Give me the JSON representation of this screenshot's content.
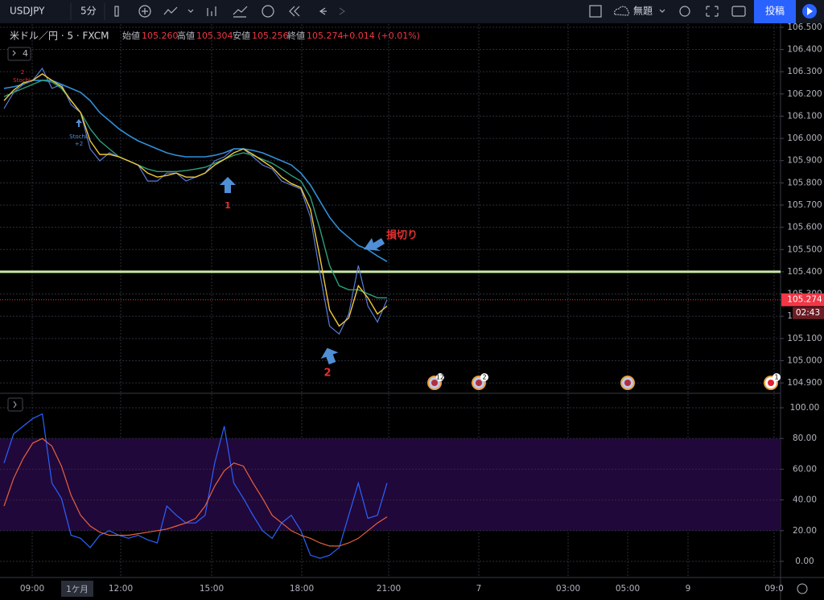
{
  "toolbar": {
    "symbol": "USDJPY",
    "interval": "5分",
    "layout_name": "無題",
    "publish": "投稿"
  },
  "legend": {
    "title": "米ドル／円 · 5 · FXCM",
    "open_label": "始値",
    "open": "105.260",
    "high_label": "高値",
    "high": "105.304",
    "low_label": "安値",
    "low": "105.256",
    "close_label": "終値",
    "close": "105.274",
    "change": "+0.014 (+0.01%)",
    "indicator_count": "4"
  },
  "chart_data": [
    {
      "type": "line",
      "ylim": [
        104.857,
        106.514
      ],
      "yticks": [
        {
          "value": 106.5,
          "label": "106.500"
        },
        {
          "value": 106.4,
          "label": "106.400"
        },
        {
          "value": 106.3,
          "label": "106.300"
        },
        {
          "value": 106.2,
          "label": "106.200"
        },
        {
          "value": 106.1,
          "label": "106.100"
        },
        {
          "value": 106.0,
          "label": "106.000"
        },
        {
          "value": 105.9,
          "label": "105.900"
        },
        {
          "value": 105.8,
          "label": "105.800"
        },
        {
          "value": 105.7,
          "label": "105.700"
        },
        {
          "value": 105.6,
          "label": "105.600"
        },
        {
          "value": 105.5,
          "label": "105.500"
        },
        {
          "value": 105.4,
          "label": "105.400"
        },
        {
          "value": 105.3,
          "label": "105.300"
        },
        {
          "value": 105.2,
          "label": "105.200"
        },
        {
          "value": 105.1,
          "label": "105.100"
        },
        {
          "value": 105.0,
          "label": "105.000"
        },
        {
          "value": 104.9,
          "label": "104.900"
        }
      ],
      "grid": true,
      "series": [
        {
          "color": "#5b7bd6",
          "width": 1.2,
          "values": [
            106.134,
            106.207,
            106.243,
            106.261,
            106.315,
            106.225,
            106.243,
            106.152,
            106.116,
            105.953,
            105.899,
            105.935,
            105.917,
            105.899,
            105.88,
            105.808,
            105.808,
            105.844,
            105.844,
            105.808,
            105.826,
            105.844,
            105.899,
            105.917,
            105.953,
            105.953,
            105.917,
            105.88,
            105.862,
            105.808,
            105.79,
            105.772,
            105.645,
            105.391,
            105.156,
            105.12,
            105.21,
            105.428,
            105.246,
            105.174,
            105.274
          ]
        },
        {
          "color": "#2f8fd8",
          "width": 1.6,
          "values": [
            106.225,
            106.232,
            106.243,
            106.261,
            106.261,
            106.261,
            106.243,
            106.225,
            106.207,
            106.17,
            106.116,
            106.08,
            106.043,
            106.014,
            105.989,
            105.971,
            105.953,
            105.935,
            105.924,
            105.917,
            105.917,
            105.917,
            105.924,
            105.935,
            105.953,
            105.953,
            105.946,
            105.935,
            105.917,
            105.899,
            105.88,
            105.844,
            105.79,
            105.717,
            105.645,
            105.591,
            105.554,
            105.518,
            105.5,
            105.471,
            105.446
          ]
        },
        {
          "color": "#2e9e7c",
          "width": 1.4,
          "values": [
            106.188,
            106.207,
            106.225,
            106.243,
            106.261,
            106.254,
            106.225,
            106.17,
            106.116,
            106.043,
            105.989,
            105.953,
            105.917,
            105.899,
            105.88,
            105.862,
            105.851,
            105.851,
            105.851,
            105.855,
            105.862,
            105.87,
            105.888,
            105.906,
            105.924,
            105.935,
            105.924,
            105.906,
            105.888,
            105.862,
            105.833,
            105.808,
            105.736,
            105.591,
            105.428,
            105.337,
            105.319,
            105.319,
            105.301,
            105.283,
            105.283
          ]
        },
        {
          "color": "#f0c93a",
          "width": 1.4,
          "values": [
            106.17,
            106.217,
            106.25,
            106.261,
            106.29,
            106.261,
            106.232,
            106.17,
            106.116,
            105.989,
            105.928,
            105.928,
            105.917,
            105.899,
            105.88,
            105.844,
            105.826,
            105.833,
            105.844,
            105.826,
            105.826,
            105.844,
            105.88,
            105.906,
            105.935,
            105.953,
            105.928,
            105.899,
            105.87,
            105.826,
            105.797,
            105.779,
            105.681,
            105.464,
            105.228,
            105.156,
            105.192,
            105.337,
            105.283,
            105.21,
            105.246
          ]
        }
      ],
      "hlines": [
        {
          "value": 105.4,
          "color": "#c9e8a8"
        }
      ],
      "last_price": {
        "value": 105.274,
        "label": "105.274",
        "color": "#f23645"
      },
      "countdown": "02:43",
      "annotations": [
        {
          "text": "1"
        },
        {
          "text": "2"
        },
        {
          "text": "損切り"
        }
      ],
      "study_markers": [
        {
          "text": "StochL",
          "sub": "2"
        },
        {
          "text": "StochL",
          "sub": "+2"
        }
      ],
      "event_counts": [
        "12",
        "2",
        null,
        "1"
      ]
    },
    {
      "type": "line",
      "ylim": [
        -10.5,
        108.9
      ],
      "yticks": [
        {
          "value": 100,
          "label": "100.00"
        },
        {
          "value": 80,
          "label": "80.00"
        },
        {
          "value": 60,
          "label": "60.00"
        },
        {
          "value": 40,
          "label": "40.00"
        },
        {
          "value": 20,
          "label": "20.00"
        },
        {
          "value": 0,
          "label": "0.00"
        }
      ],
      "grid": true,
      "band": {
        "range": [
          20,
          80
        ],
        "color": "#21083a"
      },
      "series": [
        {
          "color": "#2962ff",
          "width": 1.2,
          "values": [
            64,
            83,
            88,
            93,
            96,
            51,
            41,
            17,
            15,
            9,
            17,
            20,
            17,
            15,
            17,
            14,
            12,
            36,
            30,
            25,
            25,
            30,
            64,
            88,
            51,
            41,
            30,
            20,
            15,
            25,
            30,
            20,
            4,
            2,
            4,
            9,
            30,
            51,
            28,
            30,
            51
          ]
        },
        {
          "color": "#e8613c",
          "width": 1.2,
          "values": [
            36,
            54,
            67,
            77,
            80,
            75,
            62,
            43,
            30,
            23,
            19,
            17,
            17,
            17,
            18,
            19,
            20,
            21,
            23,
            25,
            28,
            36,
            49,
            59,
            64,
            62,
            51,
            41,
            30,
            25,
            20,
            17,
            15,
            12,
            10,
            10,
            12,
            15,
            20,
            25,
            29
          ]
        }
      ]
    }
  ],
  "time_axis": {
    "labels": [
      "09:00",
      "12:00",
      "15:00",
      "18:00",
      "21:00",
      "7",
      "03:00",
      "05:00",
      "9",
      "09:0"
    ]
  },
  "bottom": {
    "range": "1ケ月"
  }
}
